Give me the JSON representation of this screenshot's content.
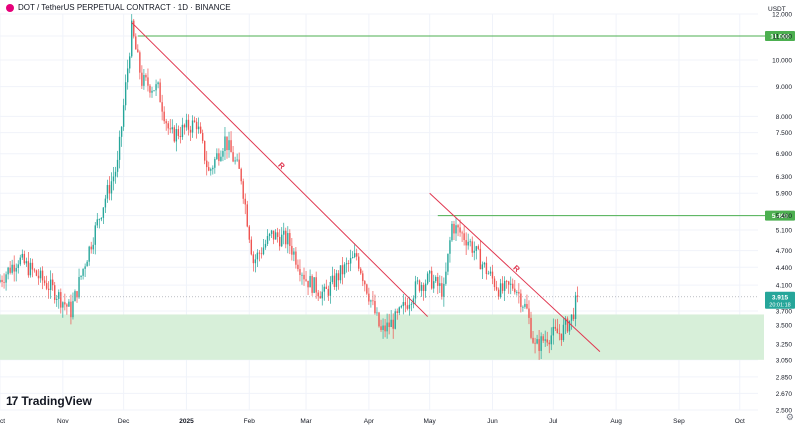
{
  "header": {
    "title": "DOT / TetherUS PERPETUAL CONTRACT · 1D · BINANCE",
    "currency": "USDT"
  },
  "branding": {
    "logo_text": "TradingView",
    "logo_mark": "17"
  },
  "colors": {
    "up": "#26a69a",
    "down": "#ef5350",
    "trendline": "#e0364f",
    "level": "#4caf50",
    "support_zone": "#d7efd9",
    "grid": "#f0f3fa"
  },
  "chart_data": {
    "type": "candlestick",
    "scale": "log",
    "ylim": [
      2.5,
      12.0
    ],
    "y_ticks": [
      "12.000",
      "11.000",
      "10.000",
      "9.000",
      "8.000",
      "7.500",
      "6.900",
      "6.300",
      "5.900",
      "5.400",
      "5.100",
      "4.700",
      "4.400",
      "4.100",
      "3.700",
      "3.500",
      "3.250",
      "3.050",
      "2.850",
      "2.670",
      "2.500"
    ],
    "x_ticks": [
      "Oct",
      "Nov",
      "Dec",
      "2025",
      "Feb",
      "Mar",
      "Apr",
      "May",
      "Jun",
      "Jul",
      "Aug",
      "Sep",
      "Oct"
    ],
    "x_range": [
      "2024-10-01",
      "2025-10-10"
    ],
    "last_price": {
      "value": "3.915",
      "countdown": "20:01:18"
    },
    "levels": [
      {
        "label": "11.000",
        "value": 11.0,
        "from": "2024-12-08"
      },
      {
        "label": "5.400",
        "value": 5.4,
        "from": "2025-05-05"
      }
    ],
    "support_zone": {
      "low": 3.05,
      "high": 3.65
    },
    "trendlines": [
      {
        "label": "R",
        "from": {
          "date": "2024-12-05",
          "price": 11.6
        },
        "to": {
          "date": "2025-04-30",
          "price": 3.62
        }
      },
      {
        "label": "R",
        "from": {
          "date": "2025-05-01",
          "price": 5.9
        },
        "to": {
          "date": "2025-07-24",
          "price": 3.15
        }
      }
    ],
    "price_path": [
      {
        "date": "2024-09-30",
        "price": 4.15
      },
      {
        "date": "2024-10-10",
        "price": 4.55
      },
      {
        "date": "2024-10-18",
        "price": 4.3
      },
      {
        "date": "2024-10-28",
        "price": 4.0
      },
      {
        "date": "2024-11-05",
        "price": 3.7
      },
      {
        "date": "2024-11-12",
        "price": 4.5
      },
      {
        "date": "2024-11-22",
        "price": 5.8
      },
      {
        "date": "2024-11-28",
        "price": 6.6
      },
      {
        "date": "2024-12-02",
        "price": 9.0
      },
      {
        "date": "2024-12-05",
        "price": 11.3
      },
      {
        "date": "2024-12-10",
        "price": 9.2
      },
      {
        "date": "2024-12-18",
        "price": 8.9
      },
      {
        "date": "2024-12-24",
        "price": 7.4
      },
      {
        "date": "2025-01-06",
        "price": 7.8
      },
      {
        "date": "2025-01-12",
        "price": 6.4
      },
      {
        "date": "2025-01-20",
        "price": 7.3
      },
      {
        "date": "2025-01-28",
        "price": 6.3
      },
      {
        "date": "2025-02-03",
        "price": 4.5
      },
      {
        "date": "2025-02-12",
        "price": 5.0
      },
      {
        "date": "2025-02-20",
        "price": 4.9
      },
      {
        "date": "2025-03-01",
        "price": 4.2
      },
      {
        "date": "2025-03-10",
        "price": 3.95
      },
      {
        "date": "2025-03-18",
        "price": 4.3
      },
      {
        "date": "2025-03-26",
        "price": 4.6
      },
      {
        "date": "2025-04-07",
        "price": 3.4
      },
      {
        "date": "2025-04-15",
        "price": 3.6
      },
      {
        "date": "2025-04-25",
        "price": 4.1
      },
      {
        "date": "2025-05-01",
        "price": 4.2
      },
      {
        "date": "2025-05-08",
        "price": 4.0
      },
      {
        "date": "2025-05-12",
        "price": 5.2
      },
      {
        "date": "2025-05-20",
        "price": 4.9
      },
      {
        "date": "2025-05-28",
        "price": 4.4
      },
      {
        "date": "2025-06-05",
        "price": 4.0
      },
      {
        "date": "2025-06-12",
        "price": 4.1
      },
      {
        "date": "2025-06-18",
        "price": 3.7
      },
      {
        "date": "2025-06-22",
        "price": 3.2
      },
      {
        "date": "2025-06-28",
        "price": 3.35
      },
      {
        "date": "2025-07-05",
        "price": 3.4
      },
      {
        "date": "2025-07-10",
        "price": 3.6
      },
      {
        "date": "2025-07-13",
        "price": 3.915
      }
    ]
  }
}
